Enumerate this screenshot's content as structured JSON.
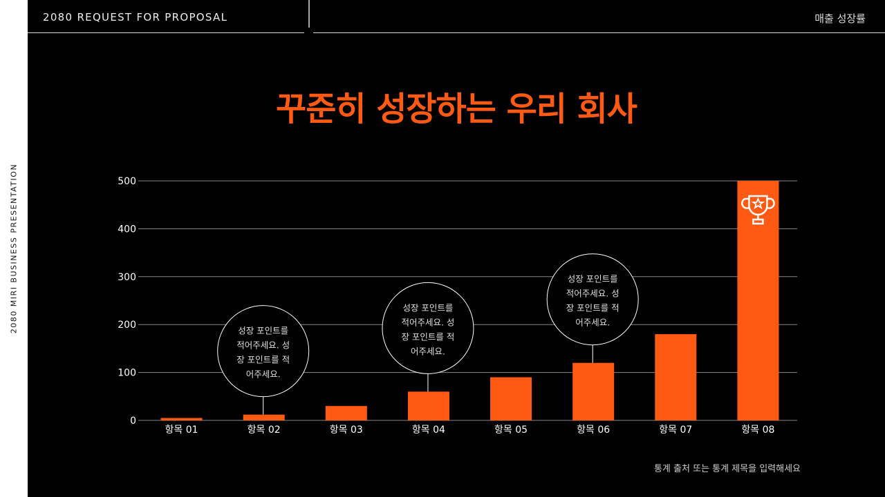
{
  "sidebar": {
    "vertical_text": "2080 MIRI BUSINESS PRESENTATION"
  },
  "header": {
    "left_title": "2080 REQUEST FOR PROPOSAL",
    "right_title": "매출 성장률"
  },
  "colors": {
    "accent": "#ff5a14",
    "background": "#000000",
    "grid": "#888888"
  },
  "chart_data": {
    "type": "bar",
    "title": "꾸준히 성장하는 우리 회사",
    "categories": [
      "항목 01",
      "항목 02",
      "항목 03",
      "항목 04",
      "항목 05",
      "항목 06",
      "항목 07",
      "항목 08"
    ],
    "values": [
      5,
      12,
      30,
      60,
      90,
      120,
      180,
      500
    ],
    "ylim": [
      0,
      500
    ],
    "yticks": [
      "0",
      "100",
      "200",
      "300",
      "400",
      "500"
    ],
    "grid": true,
    "highlight": {
      "category": "항목 08",
      "icon": "trophy-star-icon"
    },
    "annotations": [
      {
        "category": "항목 02",
        "lines": [
          "성장 포인트를",
          "적어주세요. 성",
          "장 포인트를 적",
          "어주세요."
        ]
      },
      {
        "category": "항목 04",
        "lines": [
          "성장 포인트를",
          "적어주세요. 성",
          "장 포인트를 적",
          "어주세요."
        ]
      },
      {
        "category": "항목 06",
        "lines": [
          "성장 포인트를",
          "적어주세요. 성",
          "장 포인트를 적",
          "어주세요."
        ]
      }
    ],
    "source": "통계 출처 또는 통계 제목을 입력해세요"
  }
}
